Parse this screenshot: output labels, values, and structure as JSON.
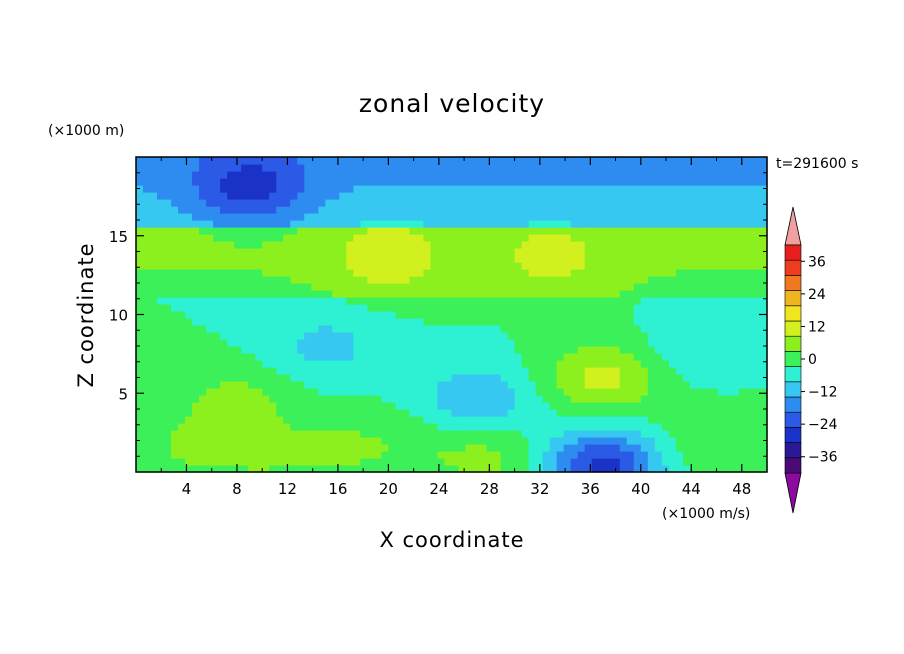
{
  "chart_data": {
    "type": "heatmap",
    "title": "zonal velocity",
    "xlabel": "X coordinate",
    "ylabel": "Z coordinate",
    "x_unit_label": "(×1000 m/s)",
    "y_unit_label": "(×1000 m)",
    "time_label": "t=291600 s",
    "xlim": [
      0,
      50
    ],
    "ylim": [
      0,
      20
    ],
    "x_ticks": [
      4,
      8,
      12,
      16,
      20,
      24,
      28,
      32,
      36,
      40,
      44,
      48
    ],
    "y_ticks": [
      5,
      10,
      15
    ],
    "colorbar": {
      "levels": [
        -42,
        -36,
        -30,
        -24,
        -18,
        -12,
        -6,
        0,
        6,
        12,
        18,
        24,
        30,
        36,
        42
      ],
      "tick_values": [
        36,
        24,
        12,
        0,
        -12,
        -24,
        -36
      ],
      "tick_labels": [
        "36",
        "24",
        "12",
        "0",
        "−12",
        "−24",
        "−36"
      ],
      "colors": [
        "#4b0a78",
        "#2a1896",
        "#1a32c8",
        "#2a5ae6",
        "#2e8cf0",
        "#36c8f0",
        "#2ef0d2",
        "#3cf05a",
        "#8cf01e",
        "#d2f01e",
        "#f0e61e",
        "#f0b41e",
        "#f0781e",
        "#f03c1e",
        "#e61e1e"
      ],
      "under_color": "#8c0aa0",
      "over_color": "#f0a0a0"
    },
    "value_scale": "zonal velocity approx (×1000 m/s)",
    "features": [
      {
        "cx": 4,
        "cz": 1.5,
        "value": 6
      },
      {
        "cx": 8,
        "cz": 4.5,
        "value": 8
      },
      {
        "cx": 10,
        "cz": 1.0,
        "value": 5
      },
      {
        "cx": 15,
        "cz": 8.0,
        "value": -8
      },
      {
        "cx": 16,
        "cz": 1.5,
        "value": 6
      },
      {
        "cx": 20,
        "cz": 13.5,
        "value": 10
      },
      {
        "cx": 22,
        "cz": 2.0,
        "value": 4
      },
      {
        "cx": 27,
        "cz": 4.5,
        "value": -12
      },
      {
        "cx": 28,
        "cz": 1.0,
        "value": 8
      },
      {
        "cx": 33,
        "cz": 13.5,
        "value": 8
      },
      {
        "cx": 37,
        "cz": 6.0,
        "value": 14
      },
      {
        "cx": 37,
        "cz": 0.5,
        "value": -26
      },
      {
        "cx": 9,
        "cz": 18.0,
        "value": -16
      },
      {
        "cx": 46,
        "cz": 2.0,
        "value": 6
      },
      {
        "cx": 45,
        "cz": 8.0,
        "value": -6
      }
    ]
  }
}
